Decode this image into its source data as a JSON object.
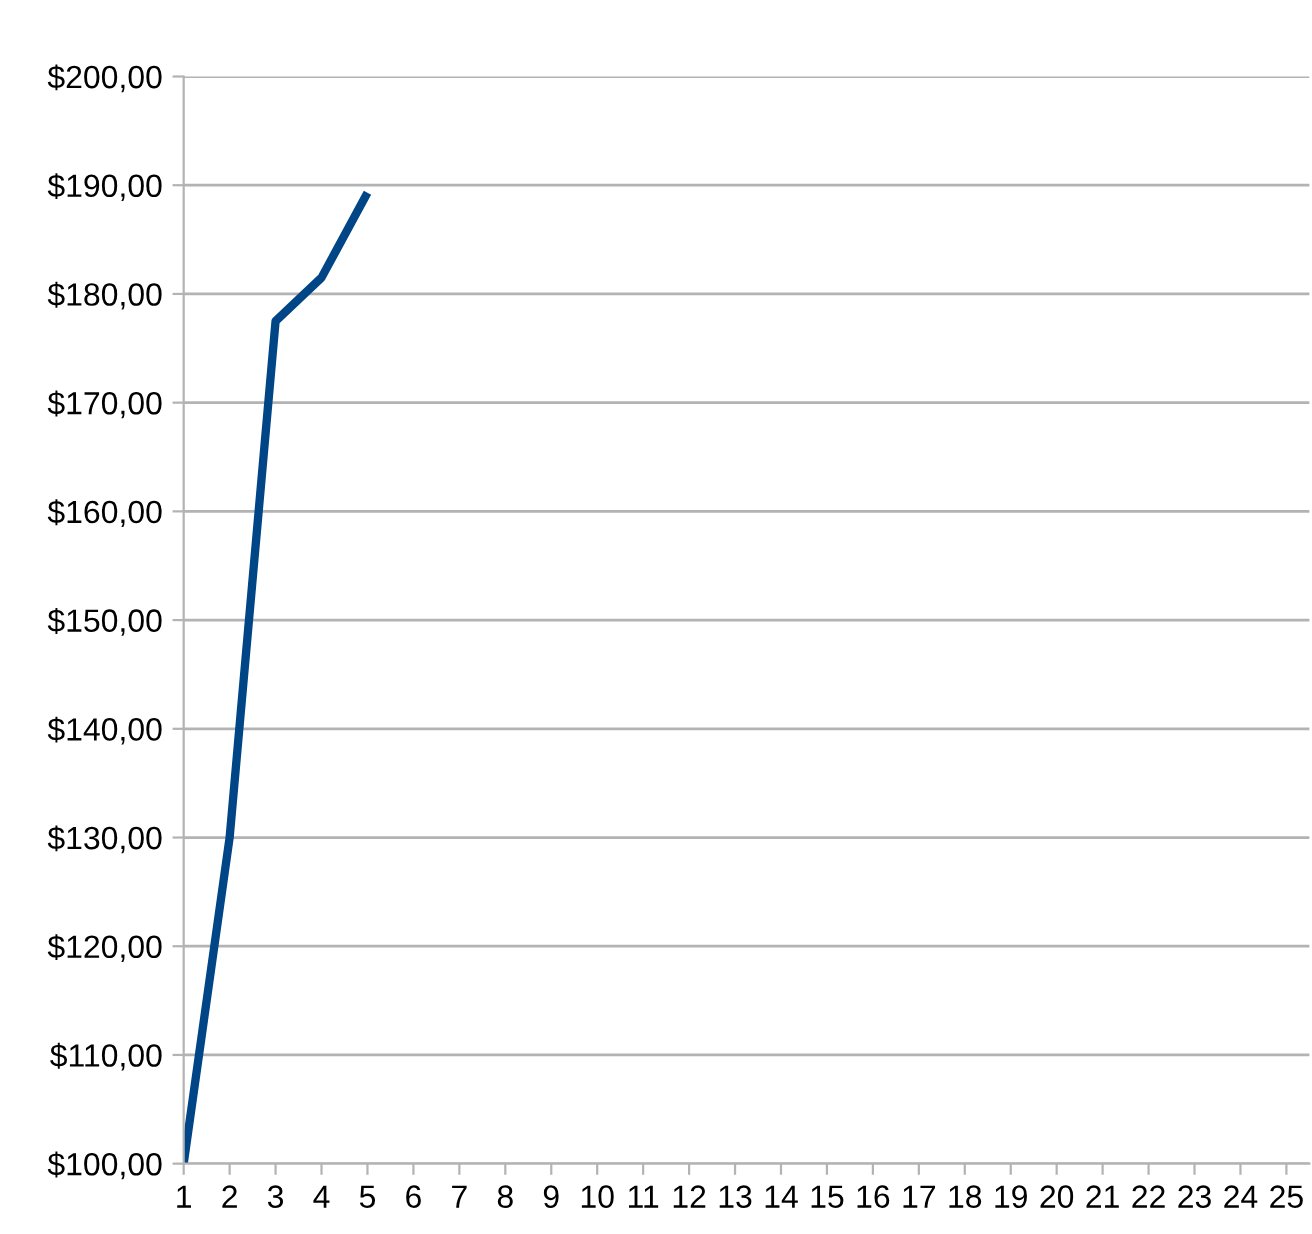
{
  "chart_data": {
    "type": "line",
    "categories": [
      "1",
      "2",
      "3",
      "4",
      "5",
      "6",
      "7",
      "8",
      "9",
      "10",
      "11",
      "12",
      "13",
      "14",
      "15",
      "16",
      "17",
      "18",
      "19",
      "20",
      "21",
      "22",
      "23",
      "24",
      "25"
    ],
    "series": [
      {
        "color": "#004586",
        "values": [
          100,
          130,
          177.5,
          181.5,
          189.3,
          null,
          null,
          null,
          null,
          null,
          null,
          null,
          null,
          null,
          null,
          null,
          null,
          null,
          null,
          null,
          null,
          null,
          null,
          null,
          null
        ]
      }
    ],
    "ylim": [
      100,
      200
    ],
    "yticks": [
      {
        "value": 100,
        "label": "$100,00"
      },
      {
        "value": 110,
        "label": "$110,00"
      },
      {
        "value": 120,
        "label": "$120,00"
      },
      {
        "value": 130,
        "label": "$130,00"
      },
      {
        "value": 140,
        "label": "$140,00"
      },
      {
        "value": 150,
        "label": "$150,00"
      },
      {
        "value": 160,
        "label": "$160,00"
      },
      {
        "value": 170,
        "label": "$170,00"
      },
      {
        "value": 180,
        "label": "$180,00"
      },
      {
        "value": 190,
        "label": "$190,00"
      },
      {
        "value": 200,
        "label": "$200,00"
      }
    ],
    "grid": "y",
    "marker": "none",
    "line_style": "solid"
  }
}
